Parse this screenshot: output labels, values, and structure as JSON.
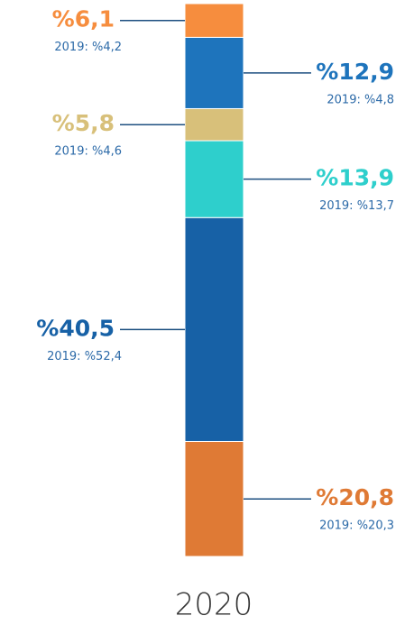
{
  "chart_data": {
    "type": "stacked_bar",
    "categories": [
      "2020"
    ],
    "ylim": [
      0,
      100
    ],
    "series": [
      {
        "color": "#df7a35",
        "values": [
          20.8
        ],
        "value_labels": [
          "%20,8"
        ],
        "comparison_label": "2019: %20,3"
      },
      {
        "color": "#1761a6",
        "values": [
          40.5
        ],
        "value_labels": [
          "%40,5"
        ],
        "comparison_label": "2019: %52,4"
      },
      {
        "color": "#2ecfcc",
        "values": [
          13.9
        ],
        "value_labels": [
          "%13,9"
        ],
        "comparison_label": "2019: %13,7"
      },
      {
        "color": "#d8c07a",
        "values": [
          5.8
        ],
        "value_labels": [
          "%5,8"
        ],
        "comparison_label": "2019: %4,6"
      },
      {
        "color": "#1e74bc",
        "values": [
          12.9
        ],
        "value_labels": [
          "%12,9"
        ],
        "comparison_label": "2019: %4,8"
      },
      {
        "color": "#f68d3e",
        "values": [
          6.1
        ],
        "value_labels": [
          "%6,1"
        ],
        "comparison_label": "2019: %4,2"
      }
    ]
  }
}
